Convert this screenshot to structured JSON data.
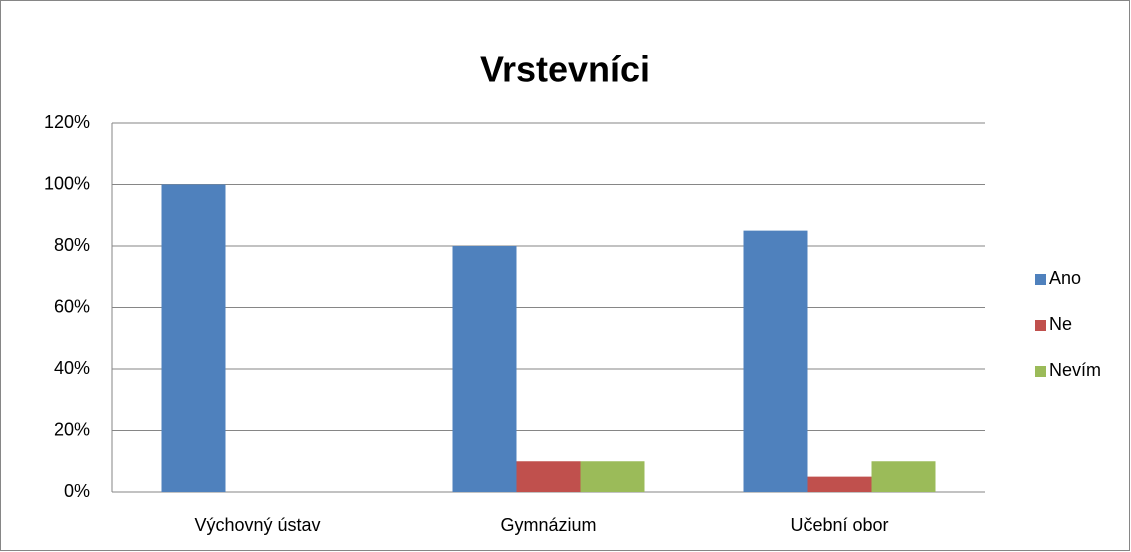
{
  "chart_data": {
    "type": "bar",
    "title": "Vrstevníci",
    "categories": [
      "Výchovný ústav",
      "Gymnázium",
      "Učební obor"
    ],
    "series": [
      {
        "name": "Ano",
        "color": "#4f81bd",
        "values": [
          100,
          80,
          85
        ]
      },
      {
        "name": "Ne",
        "color": "#c0504d",
        "values": [
          0,
          10,
          5
        ]
      },
      {
        "name": "Nevím",
        "color": "#9bbb59",
        "values": [
          0,
          10,
          10
        ]
      }
    ],
    "ylim": [
      0,
      120
    ],
    "yticks": [
      {
        "value": 0,
        "label": "0%"
      },
      {
        "value": 20,
        "label": "20%"
      },
      {
        "value": 40,
        "label": "40%"
      },
      {
        "value": 60,
        "label": "60%"
      },
      {
        "value": 80,
        "label": "80%"
      },
      {
        "value": 100,
        "label": "100%"
      },
      {
        "value": 120,
        "label": "120%"
      }
    ],
    "grid": true,
    "legend": "right"
  }
}
